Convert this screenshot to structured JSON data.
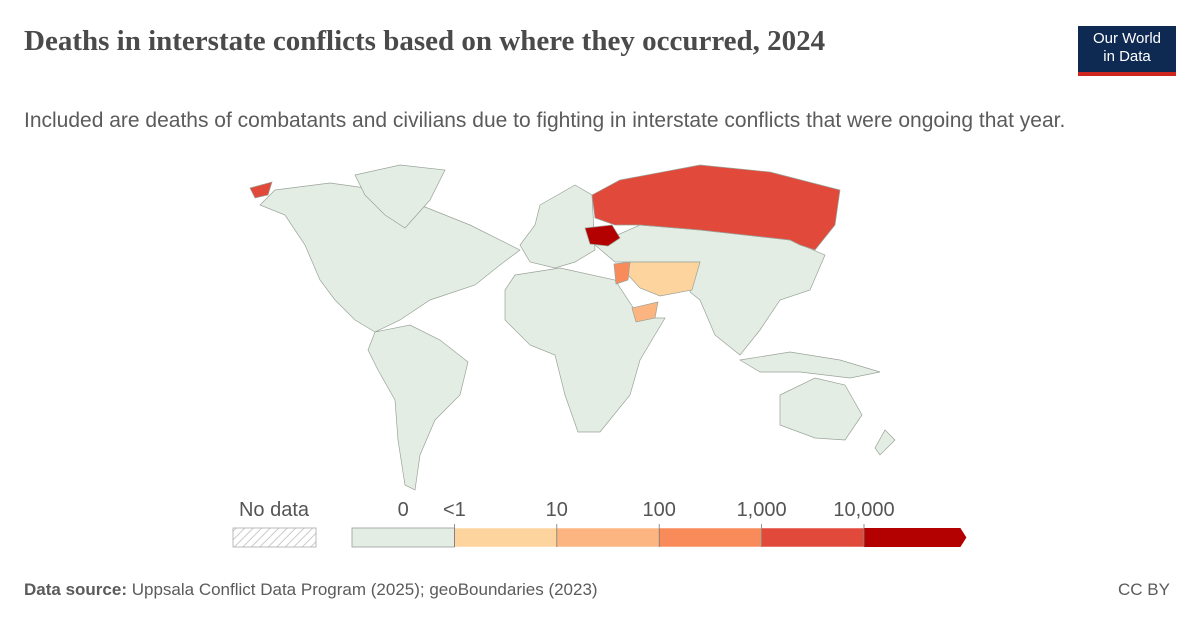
{
  "header": {
    "title": "Deaths in interstate conflicts based on where they occurred, 2024",
    "subtitle": "Included are deaths of combatants and civilians due to fighting in interstate conflicts that were ongoing that year.",
    "logo": [
      "Our World",
      "in Data"
    ]
  },
  "legend": {
    "no_data": "No data",
    "labels": [
      "0",
      "<1",
      "10",
      "100",
      "1,000",
      "10,000"
    ],
    "colors": [
      "#e4ede3",
      "#fdd49e",
      "#fcb580",
      "#f98b5b",
      "#e1493a",
      "#b30000"
    ]
  },
  "footer": {
    "source_label": "Data source:",
    "source": "Uppsala Conflict Data Program (2025); geoBoundaries (2023)",
    "license": "CC BY"
  }
}
